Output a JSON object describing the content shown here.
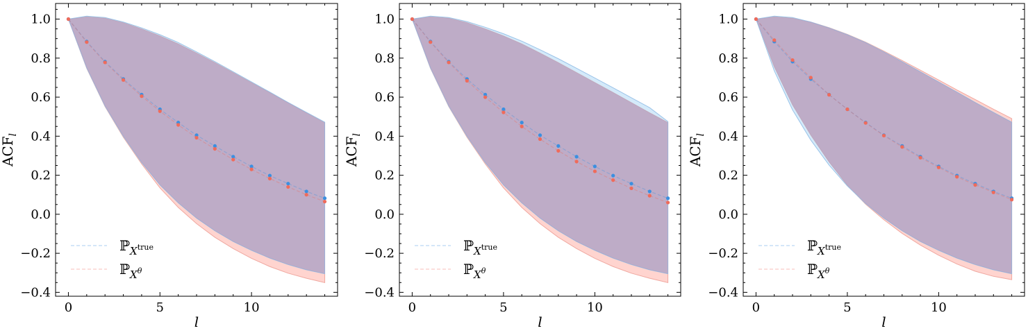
{
  "colors": {
    "true": "#3b8fe0",
    "theta": "#ef6b5b",
    "band_true": "#9fd0f5",
    "band_theta": "#ffb0a8",
    "overlap": "#a47fa8"
  },
  "chart_data": [
    {
      "type": "line",
      "xlabel": "l",
      "ylabel": "ACF_l",
      "xticks": [
        0,
        5,
        10
      ],
      "yticks": [
        -0.4,
        -0.2,
        0.0,
        0.2,
        0.4,
        0.6,
        0.8,
        1.0
      ],
      "xlim": [
        -0.7,
        14.7
      ],
      "ylim": [
        -0.42,
        1.08
      ],
      "legend_position": "lower-left",
      "x": [
        0,
        1,
        2,
        3,
        4,
        5,
        6,
        7,
        8,
        9,
        10,
        11,
        12,
        13,
        14
      ],
      "series": [
        {
          "name": "P_{X^true}",
          "key": "true",
          "values": [
            1.0,
            0.885,
            0.782,
            0.693,
            0.613,
            0.538,
            0.47,
            0.405,
            0.35,
            0.295,
            0.245,
            0.198,
            0.157,
            0.117,
            0.082
          ],
          "upper": [
            1.0,
            1.015,
            1.008,
            0.985,
            0.955,
            0.92,
            0.88,
            0.832,
            0.782,
            0.73,
            0.678,
            0.626,
            0.573,
            0.522,
            0.472
          ],
          "lower": [
            1.0,
            0.75,
            0.555,
            0.4,
            0.265,
            0.15,
            0.058,
            -0.02,
            -0.085,
            -0.14,
            -0.185,
            -0.225,
            -0.258,
            -0.285,
            -0.305
          ]
        },
        {
          "name": "P_{X^θ}",
          "key": "theta",
          "values": [
            1.0,
            0.882,
            0.778,
            0.688,
            0.605,
            0.528,
            0.458,
            0.392,
            0.335,
            0.28,
            0.23,
            0.183,
            0.14,
            0.1,
            0.065
          ],
          "upper": [
            1.0,
            1.012,
            1.005,
            0.982,
            0.95,
            0.914,
            0.873,
            0.826,
            0.777,
            0.726,
            0.675,
            0.624,
            0.572,
            0.52,
            0.47
          ],
          "lower": [
            1.0,
            0.748,
            0.552,
            0.395,
            0.258,
            0.135,
            0.035,
            -0.048,
            -0.118,
            -0.176,
            -0.226,
            -0.268,
            -0.302,
            -0.328,
            -0.35
          ]
        }
      ]
    },
    {
      "type": "line",
      "xlabel": "l",
      "ylabel": "ACF_l",
      "xticks": [
        0,
        5,
        10
      ],
      "yticks": [
        -0.4,
        -0.2,
        0.0,
        0.2,
        0.4,
        0.6,
        0.8,
        1.0
      ],
      "xlim": [
        -0.7,
        14.7
      ],
      "ylim": [
        -0.42,
        1.08
      ],
      "legend_position": "lower-left",
      "x": [
        0,
        1,
        2,
        3,
        4,
        5,
        6,
        7,
        8,
        9,
        10,
        11,
        12,
        13,
        14
      ],
      "series": [
        {
          "name": "P_{X^true}",
          "key": "true",
          "values": [
            1.0,
            0.885,
            0.782,
            0.693,
            0.613,
            0.538,
            0.47,
            0.405,
            0.35,
            0.295,
            0.245,
            0.198,
            0.157,
            0.117,
            0.082
          ],
          "upper": [
            1.0,
            1.015,
            1.008,
            0.987,
            0.958,
            0.925,
            0.887,
            0.843,
            0.797,
            0.748,
            0.698,
            0.648,
            0.597,
            0.546,
            0.475
          ],
          "lower": [
            1.0,
            0.75,
            0.555,
            0.4,
            0.265,
            0.15,
            0.058,
            -0.02,
            -0.085,
            -0.14,
            -0.185,
            -0.225,
            -0.258,
            -0.285,
            -0.305
          ]
        },
        {
          "name": "P_{X^θ}",
          "key": "theta",
          "values": [
            1.0,
            0.882,
            0.778,
            0.684,
            0.6,
            0.522,
            0.45,
            0.385,
            0.325,
            0.27,
            0.22,
            0.175,
            0.133,
            0.095,
            0.06
          ],
          "upper": [
            1.0,
            1.012,
            1.005,
            0.982,
            0.95,
            0.914,
            0.873,
            0.826,
            0.777,
            0.726,
            0.675,
            0.624,
            0.572,
            0.52,
            0.47
          ],
          "lower": [
            1.0,
            0.748,
            0.552,
            0.395,
            0.258,
            0.135,
            0.035,
            -0.048,
            -0.118,
            -0.176,
            -0.226,
            -0.268,
            -0.302,
            -0.328,
            -0.35
          ]
        }
      ]
    },
    {
      "type": "line",
      "xlabel": "l",
      "ylabel": "ACF_l",
      "xticks": [
        0,
        5,
        10
      ],
      "yticks": [
        -0.4,
        -0.2,
        0.0,
        0.2,
        0.4,
        0.6,
        0.8,
        1.0
      ],
      "xlim": [
        -0.7,
        14.7
      ],
      "ylim": [
        -0.42,
        1.08
      ],
      "legend_position": "lower-left",
      "x": [
        0,
        1,
        2,
        3,
        4,
        5,
        6,
        7,
        8,
        9,
        10,
        11,
        12,
        13,
        14
      ],
      "series": [
        {
          "name": "P_{X^true}",
          "key": "true",
          "values": [
            1.0,
            0.885,
            0.782,
            0.693,
            0.613,
            0.538,
            0.47,
            0.405,
            0.35,
            0.295,
            0.245,
            0.198,
            0.157,
            0.117,
            0.082
          ],
          "upper": [
            1.0,
            1.015,
            1.008,
            0.985,
            0.955,
            0.92,
            0.88,
            0.832,
            0.782,
            0.73,
            0.678,
            0.626,
            0.573,
            0.522,
            0.472
          ],
          "lower": [
            1.0,
            0.735,
            0.535,
            0.38,
            0.252,
            0.145,
            0.055,
            -0.02,
            -0.085,
            -0.14,
            -0.185,
            -0.225,
            -0.258,
            -0.285,
            -0.305
          ]
        },
        {
          "name": "P_{X^θ}",
          "key": "theta",
          "values": [
            1.0,
            0.892,
            0.79,
            0.7,
            0.612,
            0.538,
            0.468,
            0.403,
            0.345,
            0.29,
            0.24,
            0.192,
            0.15,
            0.112,
            0.075
          ],
          "upper": [
            1.0,
            1.012,
            1.005,
            0.985,
            0.956,
            0.922,
            0.882,
            0.836,
            0.788,
            0.738,
            0.688,
            0.637,
            0.588,
            0.538,
            0.49
          ],
          "lower": [
            1.0,
            0.755,
            0.56,
            0.405,
            0.268,
            0.148,
            0.052,
            -0.028,
            -0.098,
            -0.158,
            -0.21,
            -0.255,
            -0.292,
            -0.318,
            -0.335
          ]
        }
      ]
    }
  ]
}
